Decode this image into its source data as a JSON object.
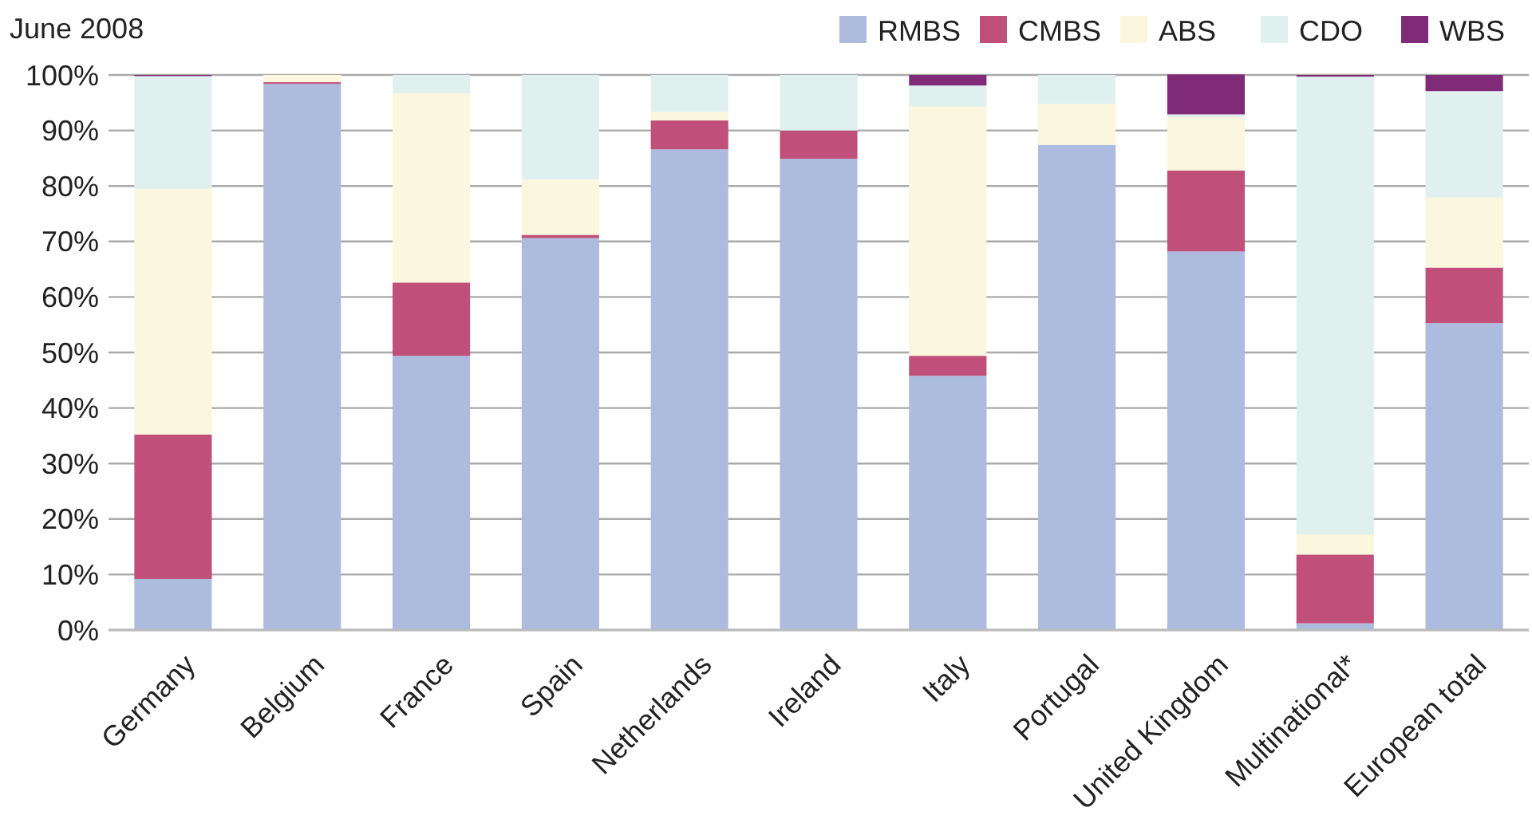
{
  "chart_data": {
    "type": "bar",
    "title": "June 2008",
    "stacked": true,
    "legend": "top right",
    "grid": "y",
    "categories": [
      "Germany",
      "Belgium",
      "France",
      "Spain",
      "Netherlands",
      "Ireland",
      "Italy",
      "Portugal",
      "United Kingdom",
      "Multinational*",
      "European total"
    ],
    "series": [
      {
        "name": "RMBS",
        "color": "#adbbdf",
        "values": [
          9.2,
          98.4,
          49.4,
          70.6,
          86.6,
          84.9,
          45.8,
          87.4,
          68.2,
          1.2,
          55.3
        ]
      },
      {
        "name": "CMBS",
        "color": "#c05079",
        "values": [
          26,
          0.3,
          13.2,
          0.6,
          5.2,
          5.1,
          3.6,
          0,
          14.6,
          12.4,
          10
        ]
      },
      {
        "name": "ABS",
        "color": "#fbf6de",
        "values": [
          44.3,
          1.3,
          34.1,
          10,
          1.6,
          0,
          44.9,
          7.4,
          9.6,
          3.6,
          12.6
        ]
      },
      {
        "name": "CDO",
        "color": "#e0f0ef",
        "values": [
          20.3,
          0,
          3.3,
          18.8,
          6.6,
          10,
          3.8,
          5.2,
          0.5,
          82.5,
          19.2
        ]
      },
      {
        "name": "WBS",
        "color": "#7f2b77",
        "values": [
          0.2,
          0,
          0,
          0,
          0,
          0,
          1.9,
          0,
          7.2,
          0.3,
          2.9
        ]
      }
    ],
    "ylim": [
      0,
      100
    ],
    "yticks": [
      {
        "value": 0,
        "label": "0%"
      },
      {
        "value": 10,
        "label": "10%"
      },
      {
        "value": 20,
        "label": "20%"
      },
      {
        "value": 30,
        "label": "30%"
      },
      {
        "value": 40,
        "label": "40%"
      },
      {
        "value": 50,
        "label": "50%"
      },
      {
        "value": 60,
        "label": "60%"
      },
      {
        "value": 70,
        "label": "70%"
      },
      {
        "value": 80,
        "label": "80%"
      },
      {
        "value": 90,
        "label": "90%"
      },
      {
        "value": 100,
        "label": "100%"
      }
    ]
  }
}
